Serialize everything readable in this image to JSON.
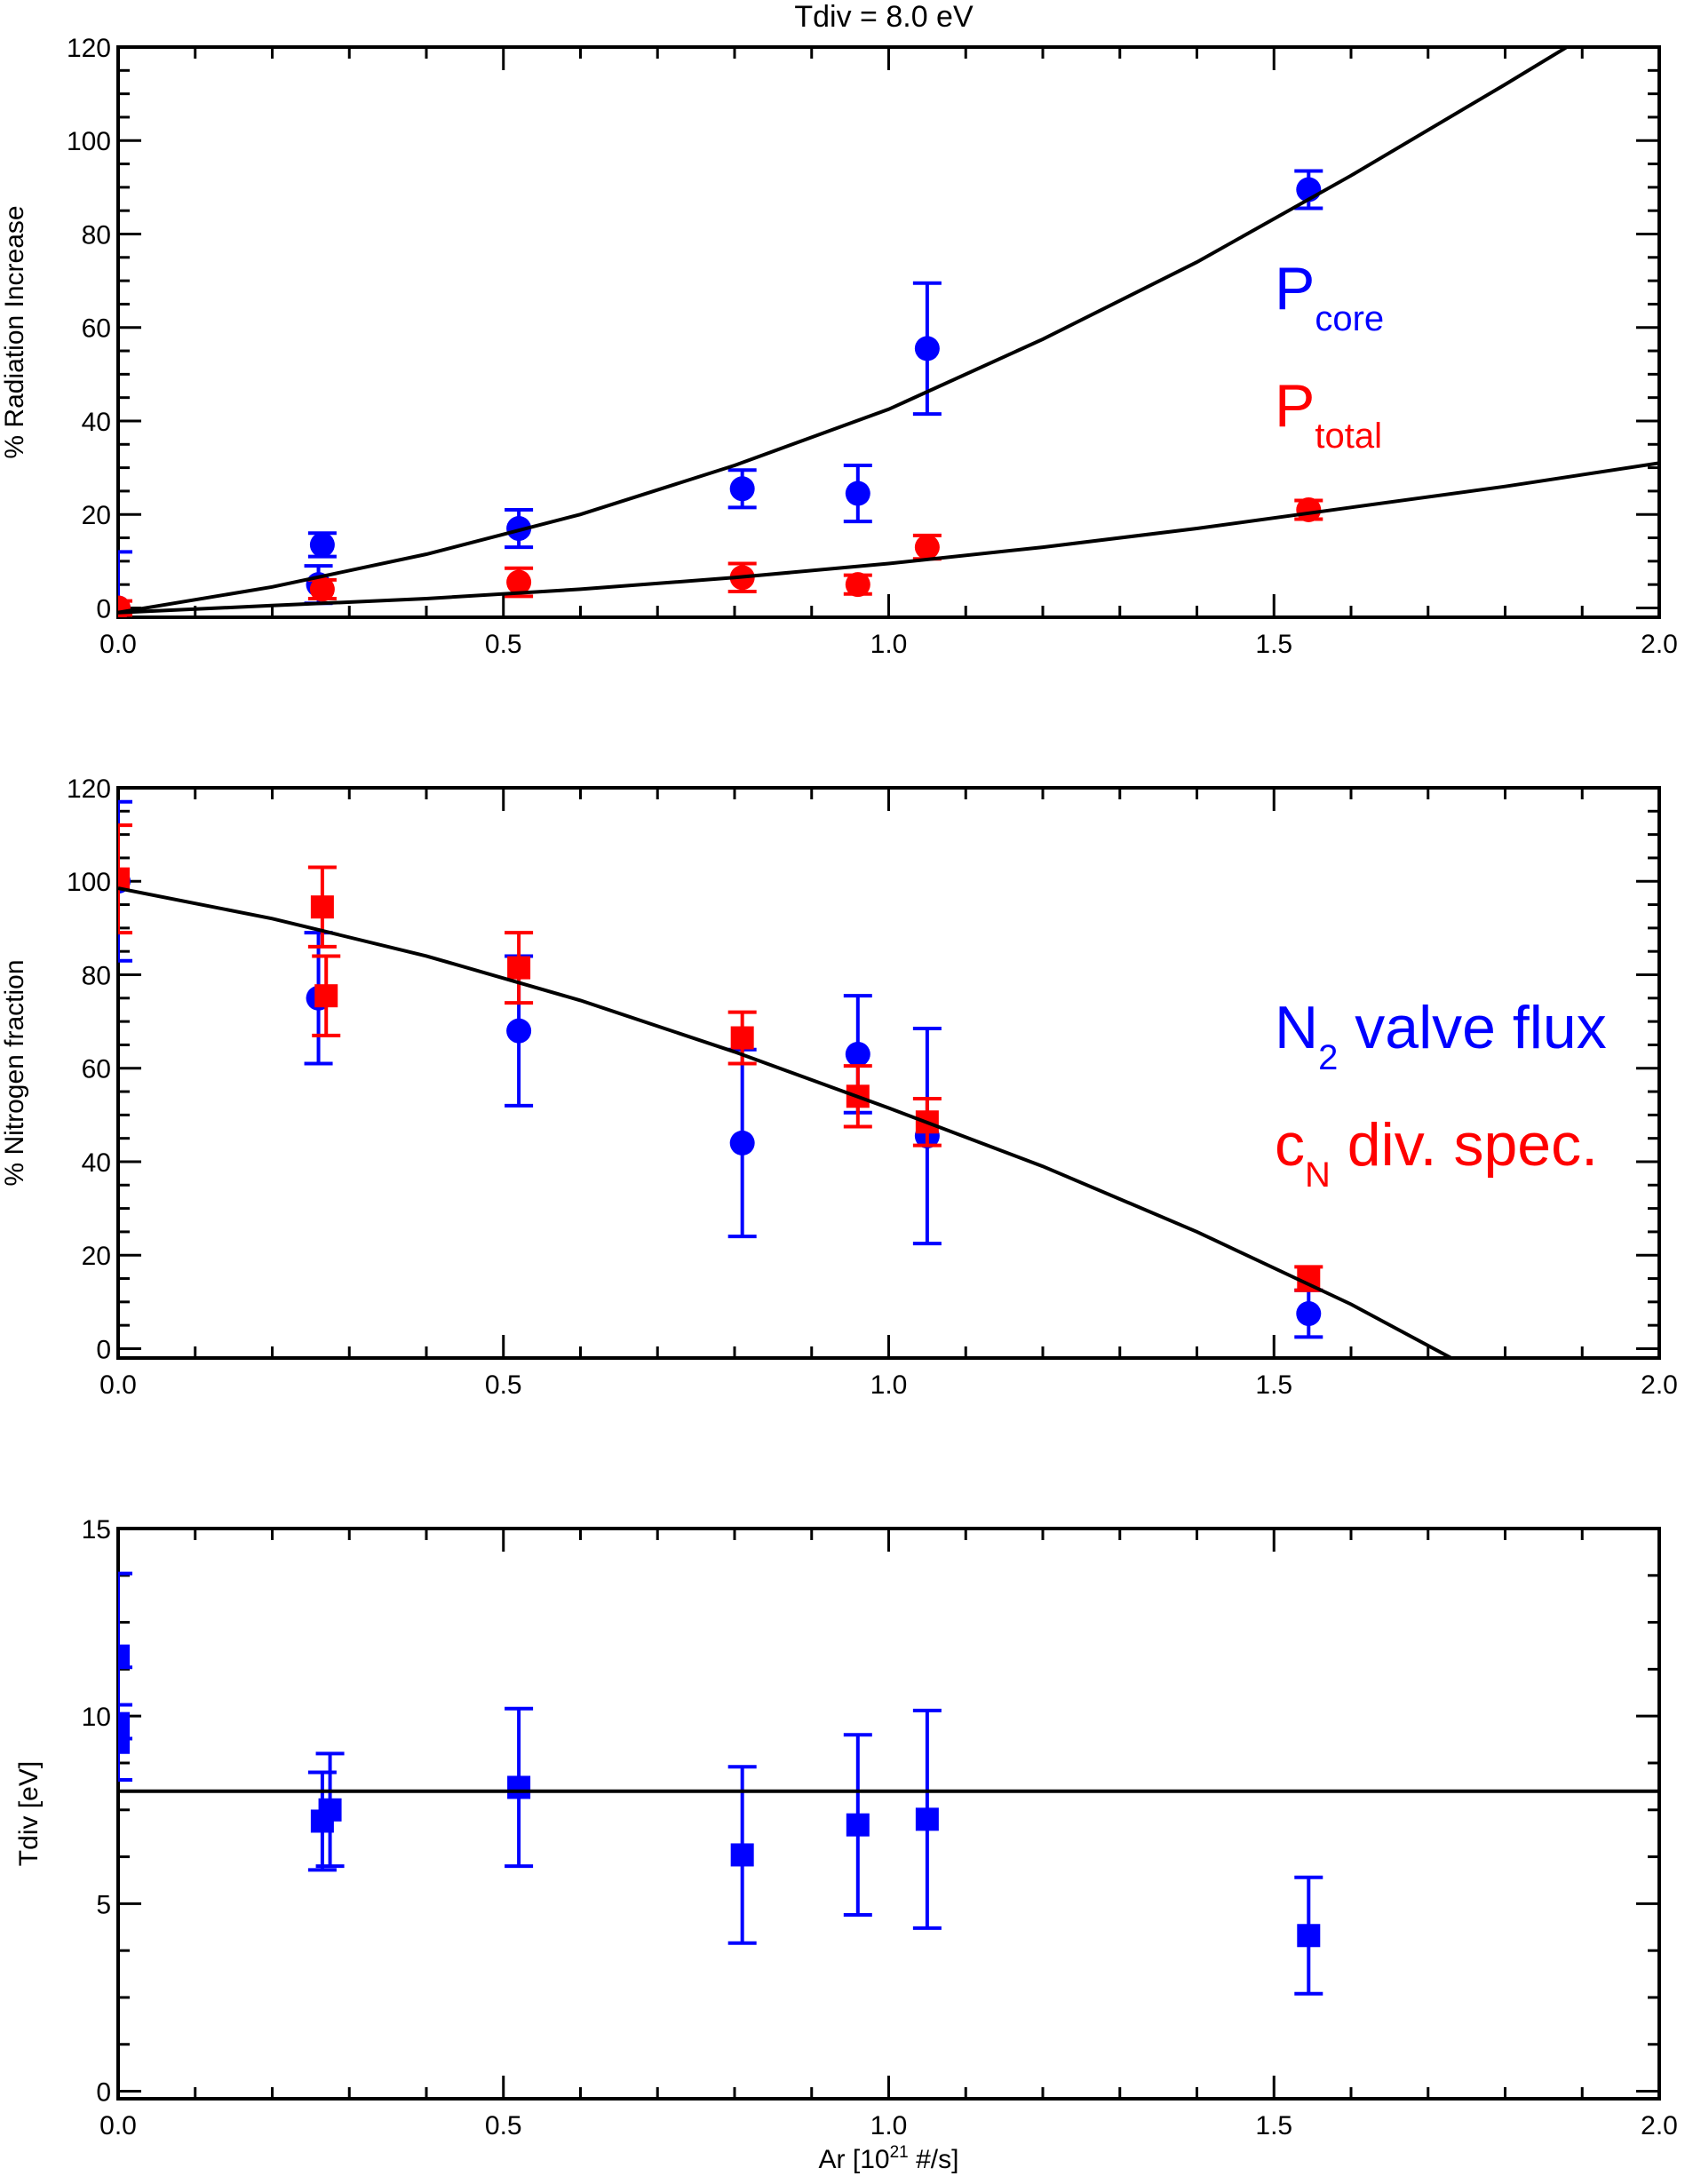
{
  "figure": {
    "title": "Tdiv = 8.0 eV",
    "colors": {
      "blue": "#0000ff",
      "red": "#ff0000",
      "black": "#000000"
    }
  },
  "chart_data": [
    {
      "type": "scatter",
      "panel": "top",
      "xlabel": "",
      "ylabel": "% Radiation Increase",
      "xlim": [
        0.0,
        2.0
      ],
      "ylim": [
        -2,
        120
      ],
      "xticks": [
        0.0,
        0.5,
        1.0,
        1.5,
        2.0
      ],
      "xtick_labels": [
        "0.0",
        "0.5",
        "1.0",
        "1.5",
        "2.0"
      ],
      "yticks": [
        0,
        20,
        40,
        60,
        80,
        100,
        120
      ],
      "ytick_labels": [
        "0",
        "20",
        "40",
        "60",
        "80",
        "100",
        "120"
      ],
      "grid": false,
      "legend": [
        {
          "main": "P",
          "sub": "core",
          "color": "#0000ff"
        },
        {
          "main": "P",
          "sub": "total",
          "color": "#ff0000"
        }
      ],
      "series": [
        {
          "color": "#0000ff",
          "marker": "circle",
          "points": [
            {
              "x": 0.0,
              "y": 0.0,
              "err": 12.0
            },
            {
              "x": 0.26,
              "y": 5.0,
              "err": 4.0
            },
            {
              "x": 0.265,
              "y": 13.5,
              "err": 2.5
            },
            {
              "x": 0.52,
              "y": 17.0,
              "err": 4.0
            },
            {
              "x": 0.81,
              "y": 25.5,
              "err": 4.0
            },
            {
              "x": 0.96,
              "y": 24.5,
              "err": 6.0
            },
            {
              "x": 1.05,
              "y": 55.5,
              "err": 14.0
            },
            {
              "x": 1.545,
              "y": 89.5,
              "err": 4.0
            }
          ]
        },
        {
          "color": "#ff0000",
          "marker": "circle",
          "points": [
            {
              "x": 0.0,
              "y": 0.0,
              "err": 1.5
            },
            {
              "x": 0.265,
              "y": 4.0,
              "err": 2.0
            },
            {
              "x": 0.52,
              "y": 5.5,
              "err": 3.0
            },
            {
              "x": 0.81,
              "y": 6.5,
              "err": 3.0
            },
            {
              "x": 0.96,
              "y": 5.0,
              "err": 2.0
            },
            {
              "x": 1.05,
              "y": 13.0,
              "err": 2.5
            },
            {
              "x": 1.545,
              "y": 21.0,
              "err": 2.0
            }
          ]
        },
        {
          "color": "#000000",
          "marker": "line",
          "points": [
            {
              "x": 0.0,
              "y": -1.0
            },
            {
              "x": 0.2,
              "y": 4.5
            },
            {
              "x": 0.4,
              "y": 11.5
            },
            {
              "x": 0.6,
              "y": 20.0
            },
            {
              "x": 0.8,
              "y": 30.5
            },
            {
              "x": 1.0,
              "y": 42.5
            },
            {
              "x": 1.2,
              "y": 57.5
            },
            {
              "x": 1.4,
              "y": 74.0
            },
            {
              "x": 1.6,
              "y": 92.5
            },
            {
              "x": 1.8,
              "y": 112.0
            },
            {
              "x": 1.9,
              "y": 122.0
            }
          ]
        },
        {
          "color": "#000000",
          "marker": "line",
          "points": [
            {
              "x": 0.0,
              "y": -1.0
            },
            {
              "x": 0.2,
              "y": 0.5
            },
            {
              "x": 0.4,
              "y": 2.0
            },
            {
              "x": 0.6,
              "y": 4.0
            },
            {
              "x": 0.8,
              "y": 6.5
            },
            {
              "x": 1.0,
              "y": 9.5
            },
            {
              "x": 1.2,
              "y": 13.0
            },
            {
              "x": 1.4,
              "y": 17.0
            },
            {
              "x": 1.6,
              "y": 21.5
            },
            {
              "x": 1.8,
              "y": 26.0
            },
            {
              "x": 2.0,
              "y": 31.0
            }
          ]
        }
      ]
    },
    {
      "type": "scatter",
      "panel": "middle",
      "xlabel": "",
      "ylabel": "% Nitrogen fraction",
      "xlim": [
        0.0,
        2.0
      ],
      "ylim": [
        -2,
        120
      ],
      "xticks": [
        0.0,
        0.5,
        1.0,
        1.5,
        2.0
      ],
      "xtick_labels": [
        "0.0",
        "0.5",
        "1.0",
        "1.5",
        "2.0"
      ],
      "yticks": [
        0,
        20,
        40,
        60,
        80,
        100,
        120
      ],
      "ytick_labels": [
        "0",
        "20",
        "40",
        "60",
        "80",
        "100",
        "120"
      ],
      "grid": false,
      "legend": [
        {
          "main": "N",
          "sub": "2",
          "tail": " valve flux",
          "color": "#0000ff"
        },
        {
          "main": "c",
          "sub": "N",
          "tail": " div. spec.",
          "color": "#ff0000"
        }
      ],
      "series": [
        {
          "color": "#0000ff",
          "marker": "circle",
          "points": [
            {
              "x": 0.0,
              "y": 100.0,
              "err": 17.0
            },
            {
              "x": 0.26,
              "y": 75.0,
              "err": 14.0
            },
            {
              "x": 0.52,
              "y": 68.0,
              "err": 16.0
            },
            {
              "x": 0.81,
              "y": 44.0,
              "err": 20.0
            },
            {
              "x": 0.96,
              "y": 63.0,
              "err": 12.5
            },
            {
              "x": 1.05,
              "y": 45.5,
              "err": 23.0
            },
            {
              "x": 1.545,
              "y": 7.5,
              "err": 5.0
            }
          ]
        },
        {
          "color": "#ff0000",
          "marker": "square",
          "points": [
            {
              "x": 0.0,
              "y": 100.5,
              "err": 11.5
            },
            {
              "x": 0.265,
              "y": 94.5,
              "err": 8.5
            },
            {
              "x": 0.27,
              "y": 75.5,
              "err": 8.5
            },
            {
              "x": 0.52,
              "y": 81.5,
              "err": 7.5
            },
            {
              "x": 0.81,
              "y": 66.5,
              "err": 5.5
            },
            {
              "x": 0.96,
              "y": 54.0,
              "err": 6.5
            },
            {
              "x": 1.05,
              "y": 48.5,
              "err": 5.0
            },
            {
              "x": 1.545,
              "y": 15.0,
              "err": 2.5
            }
          ]
        },
        {
          "color": "#000000",
          "marker": "line",
          "points": [
            {
              "x": 0.0,
              "y": 98.5
            },
            {
              "x": 0.2,
              "y": 92.0
            },
            {
              "x": 0.4,
              "y": 84.0
            },
            {
              "x": 0.6,
              "y": 74.5
            },
            {
              "x": 0.8,
              "y": 63.5
            },
            {
              "x": 1.0,
              "y": 51.5
            },
            {
              "x": 1.2,
              "y": 39.0
            },
            {
              "x": 1.4,
              "y": 25.0
            },
            {
              "x": 1.6,
              "y": 9.5
            },
            {
              "x": 1.73,
              "y": -2.0
            }
          ]
        }
      ]
    },
    {
      "type": "scatter",
      "panel": "bottom",
      "xlabel_prefix": "Ar [10",
      "xlabel_sup": "21",
      "xlabel_suffix": " #/s]",
      "ylabel": "Tdiv [eV]",
      "xlim": [
        0.0,
        2.0
      ],
      "ylim": [
        -0.2,
        15
      ],
      "xticks": [
        0.0,
        0.5,
        1.0,
        1.5,
        2.0
      ],
      "xtick_labels": [
        "0.0",
        "0.5",
        "1.0",
        "1.5",
        "2.0"
      ],
      "yticks": [
        0,
        5,
        10,
        15
      ],
      "ytick_labels": [
        "0",
        "5",
        "10",
        "15"
      ],
      "grid": false,
      "series": [
        {
          "color": "#0000ff",
          "marker": "square",
          "points": [
            {
              "x": 0.0,
              "y": 11.6,
              "err": 2.2
            },
            {
              "x": 0.0,
              "y": 9.8,
              "err": 1.5
            },
            {
              "x": 0.0,
              "y": 9.3,
              "err": 1.0
            },
            {
              "x": 0.265,
              "y": 7.2,
              "err": 1.3
            },
            {
              "x": 0.275,
              "y": 7.5,
              "err": 1.5
            },
            {
              "x": 0.52,
              "y": 8.1,
              "err": 2.1
            },
            {
              "x": 0.81,
              "y": 6.3,
              "err": 2.35
            },
            {
              "x": 0.96,
              "y": 7.1,
              "err": 2.4
            },
            {
              "x": 1.05,
              "y": 7.25,
              "err": 2.9
            },
            {
              "x": 1.545,
              "y": 4.15,
              "err": 1.55
            }
          ]
        },
        {
          "color": "#000000",
          "marker": "line",
          "points": [
            {
              "x": 0.0,
              "y": 8.0
            },
            {
              "x": 2.0,
              "y": 8.0
            }
          ]
        }
      ]
    }
  ]
}
